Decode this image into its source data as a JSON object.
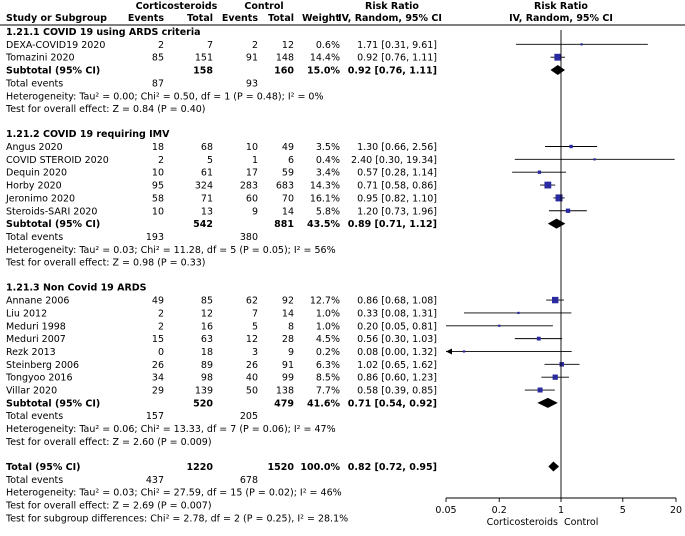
{
  "chart_data": {
    "type": "forest",
    "scale": "log",
    "header": {
      "group1": "Corticosteroids",
      "group2": "Control",
      "study": "Study or Subgroup",
      "events": "Events",
      "total": "Total",
      "weight": "Weight",
      "rr_title": "Risk Ratio",
      "rr_method": "IV, Random, 95% CI"
    },
    "subgroups": [
      {
        "title": "1.21.1 COVID 19 using ARDS criteria",
        "studies": [
          {
            "name": "DEXA-COVID19 2020",
            "e1": "2",
            "n1": "7",
            "e2": "2",
            "n2": "12",
            "weight": "0.6%",
            "ci_text": "1.71 [0.31, 9.61]",
            "rr": 1.71,
            "lo": 0.31,
            "hi": 9.61
          },
          {
            "name": "Tomazini 2020",
            "e1": "85",
            "n1": "151",
            "e2": "91",
            "n2": "148",
            "weight": "14.4%",
            "ci_text": "0.92 [0.76, 1.11]",
            "rr": 0.92,
            "lo": 0.76,
            "hi": 1.11
          }
        ],
        "subtotal": {
          "label": "Subtotal (95% CI)",
          "n1": "158",
          "n2": "160",
          "weight": "15.0%",
          "ci_text": "0.92 [0.76, 1.11]",
          "rr": 0.92,
          "lo": 0.76,
          "hi": 1.11
        },
        "total_events": {
          "label": "Total events",
          "e1": "87",
          "e2": "93"
        },
        "heterogeneity": "Heterogeneity: Tau² = 0.00; Chi² = 0.50, df = 1 (P = 0.48); I² = 0%",
        "overall": "Test for overall effect: Z = 0.84 (P = 0.40)"
      },
      {
        "title": "1.21.2 COVID 19 requiring IMV",
        "studies": [
          {
            "name": "Angus 2020",
            "e1": "18",
            "n1": "68",
            "e2": "10",
            "n2": "49",
            "weight": "3.5%",
            "ci_text": "1.30 [0.66, 2.56]",
            "rr": 1.3,
            "lo": 0.66,
            "hi": 2.56
          },
          {
            "name": "COVID STEROID 2020",
            "e1": "2",
            "n1": "5",
            "e2": "1",
            "n2": "6",
            "weight": "0.4%",
            "ci_text": "2.40 [0.30, 19.34]",
            "rr": 2.4,
            "lo": 0.3,
            "hi": 19.34
          },
          {
            "name": "Dequin 2020",
            "e1": "10",
            "n1": "61",
            "e2": "17",
            "n2": "59",
            "weight": "3.4%",
            "ci_text": "0.57 [0.28, 1.14]",
            "rr": 0.57,
            "lo": 0.28,
            "hi": 1.14
          },
          {
            "name": "Horby 2020",
            "e1": "95",
            "n1": "324",
            "e2": "283",
            "n2": "683",
            "weight": "14.3%",
            "ci_text": "0.71 [0.58, 0.86]",
            "rr": 0.71,
            "lo": 0.58,
            "hi": 0.86
          },
          {
            "name": "Jeronimo 2020",
            "e1": "58",
            "n1": "71",
            "e2": "60",
            "n2": "70",
            "weight": "16.1%",
            "ci_text": "0.95 [0.82, 1.10]",
            "rr": 0.95,
            "lo": 0.82,
            "hi": 1.1
          },
          {
            "name": "Steroids-SARI 2020",
            "e1": "10",
            "n1": "13",
            "e2": "9",
            "n2": "14",
            "weight": "5.8%",
            "ci_text": "1.20 [0.73, 1.96]",
            "rr": 1.2,
            "lo": 0.73,
            "hi": 1.96
          }
        ],
        "subtotal": {
          "label": "Subtotal (95% CI)",
          "n1": "542",
          "n2": "881",
          "weight": "43.5%",
          "ci_text": "0.89 [0.71, 1.12]",
          "rr": 0.89,
          "lo": 0.71,
          "hi": 1.12
        },
        "total_events": {
          "label": "Total events",
          "e1": "193",
          "e2": "380"
        },
        "heterogeneity": "Heterogeneity: Tau² = 0.03; Chi² = 11.28, df = 5 (P = 0.05); I² = 56%",
        "overall": "Test for overall effect: Z = 0.98 (P = 0.33)"
      },
      {
        "title": "1.21.3 Non Covid 19 ARDS",
        "studies": [
          {
            "name": "Annane 2006",
            "e1": "49",
            "n1": "85",
            "e2": "62",
            "n2": "92",
            "weight": "12.7%",
            "ci_text": "0.86 [0.68, 1.08]",
            "rr": 0.86,
            "lo": 0.68,
            "hi": 1.08
          },
          {
            "name": "Liu 2012",
            "e1": "2",
            "n1": "12",
            "e2": "7",
            "n2": "14",
            "weight": "1.0%",
            "ci_text": "0.33 [0.08, 1.31]",
            "rr": 0.33,
            "lo": 0.08,
            "hi": 1.31
          },
          {
            "name": "Meduri 1998",
            "e1": "2",
            "n1": "16",
            "e2": "5",
            "n2": "8",
            "weight": "1.0%",
            "ci_text": "0.20 [0.05, 0.81]",
            "rr": 0.2,
            "lo": 0.05,
            "hi": 0.81
          },
          {
            "name": "Meduri 2007",
            "e1": "15",
            "n1": "63",
            "e2": "12",
            "n2": "28",
            "weight": "4.5%",
            "ci_text": "0.56 [0.30, 1.03]",
            "rr": 0.56,
            "lo": 0.3,
            "hi": 1.03
          },
          {
            "name": "Rezk 2013",
            "e1": "0",
            "n1": "18",
            "e2": "3",
            "n2": "9",
            "weight": "0.2%",
            "ci_text": "0.08 [0.00, 1.32]",
            "rr": 0.08,
            "lo": 0.004,
            "hi": 1.32
          },
          {
            "name": "Steinberg 2006",
            "e1": "26",
            "n1": "89",
            "e2": "26",
            "n2": "91",
            "weight": "6.3%",
            "ci_text": "1.02 [0.65, 1.62]",
            "rr": 1.02,
            "lo": 0.65,
            "hi": 1.62
          },
          {
            "name": "Tongyoo 2016",
            "e1": "34",
            "n1": "98",
            "e2": "40",
            "n2": "99",
            "weight": "8.5%",
            "ci_text": "0.86 [0.60, 1.23]",
            "rr": 0.86,
            "lo": 0.6,
            "hi": 1.23
          },
          {
            "name": "Villar 2020",
            "e1": "29",
            "n1": "139",
            "e2": "50",
            "n2": "138",
            "weight": "7.7%",
            "ci_text": "0.58 [0.39, 0.85]",
            "rr": 0.58,
            "lo": 0.39,
            "hi": 0.85
          }
        ],
        "subtotal": {
          "label": "Subtotal (95% CI)",
          "n1": "520",
          "n2": "479",
          "weight": "41.6%",
          "ci_text": "0.71 [0.54, 0.92]",
          "rr": 0.71,
          "lo": 0.54,
          "hi": 0.92
        },
        "total_events": {
          "label": "Total events",
          "e1": "157",
          "e2": "205"
        },
        "heterogeneity": "Heterogeneity: Tau² = 0.06; Chi² = 13.33, df = 7 (P = 0.06); I² = 47%",
        "overall": "Test for overall effect: Z = 2.60 (P = 0.009)"
      }
    ],
    "total": {
      "label": "Total (95% CI)",
      "n1": "1220",
      "n2": "1520",
      "weight": "100.0%",
      "ci_text": "0.82 [0.72, 0.95]",
      "rr": 0.82,
      "lo": 0.72,
      "hi": 0.95
    },
    "total_events": {
      "label": "Total events",
      "e1": "437",
      "e2": "678"
    },
    "heterogeneity": "Heterogeneity: Tau² = 0.03; Chi² = 27.59, df = 15 (P = 0.02); I² = 46%",
    "overall": "Test for overall effect: Z = 2.69 (P = 0.007)",
    "subgroup_test": "Test for subgroup differences: Chi² = 2.78, df = 2 (P = 0.25), I² = 28.1%",
    "axis": {
      "ticks": [
        0.05,
        0.2,
        1,
        5,
        20
      ],
      "tick_labels": [
        "0.05",
        "0.2",
        "1",
        "5",
        "20"
      ],
      "xlim": [
        0.05,
        20
      ],
      "favours_left": "Corticosteroids",
      "favours_right": "Control"
    },
    "colors": {
      "study_marker": "#2a2aa0",
      "text": "#000000",
      "lines": "#000000"
    }
  }
}
